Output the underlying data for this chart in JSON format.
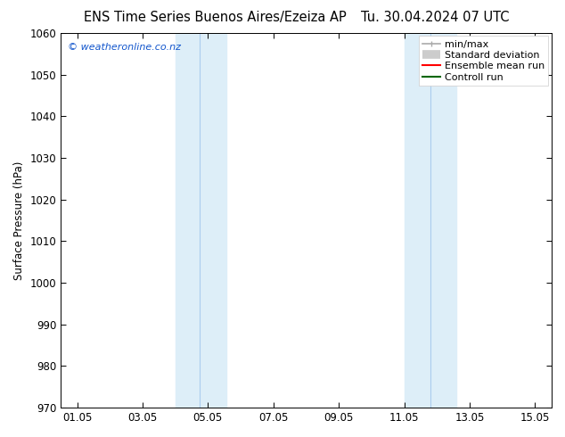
{
  "title_left": "ENS Time Series Buenos Aires/Ezeiza AP",
  "title_right": "Tu. 30.04.2024 07 UTC",
  "ylabel": "Surface Pressure (hPa)",
  "ylim": [
    970,
    1060
  ],
  "yticks": [
    970,
    980,
    990,
    1000,
    1010,
    1020,
    1030,
    1040,
    1050,
    1060
  ],
  "xlim": [
    0.5,
    15.5
  ],
  "xtick_labels": [
    "01.05",
    "03.05",
    "05.05",
    "07.05",
    "09.05",
    "11.05",
    "13.05",
    "15.05"
  ],
  "xtick_positions": [
    1,
    3,
    5,
    7,
    9,
    11,
    13,
    15
  ],
  "shaded_bands": [
    {
      "x_start": 4.0,
      "x_end": 5.55,
      "color": "#ddeef8"
    },
    {
      "x_start": 11.0,
      "x_end": 12.6,
      "color": "#ddeef8"
    }
  ],
  "band_dividers": [
    4.75,
    11.8
  ],
  "watermark": "© weatheronline.co.nz",
  "watermark_color": "#1155cc",
  "legend_entries": [
    {
      "label": "min/max",
      "color": "#aaaaaa",
      "type": "minmax"
    },
    {
      "label": "Standard deviation",
      "color": "#cccccc",
      "type": "std"
    },
    {
      "label": "Ensemble mean run",
      "color": "#ff0000",
      "type": "line"
    },
    {
      "label": "Controll run",
      "color": "#006600",
      "type": "line"
    }
  ],
  "bg_color": "#ffffff",
  "title_fontsize": 10.5,
  "tick_fontsize": 8.5,
  "ylabel_fontsize": 8.5,
  "legend_fontsize": 8,
  "watermark_fontsize": 8
}
